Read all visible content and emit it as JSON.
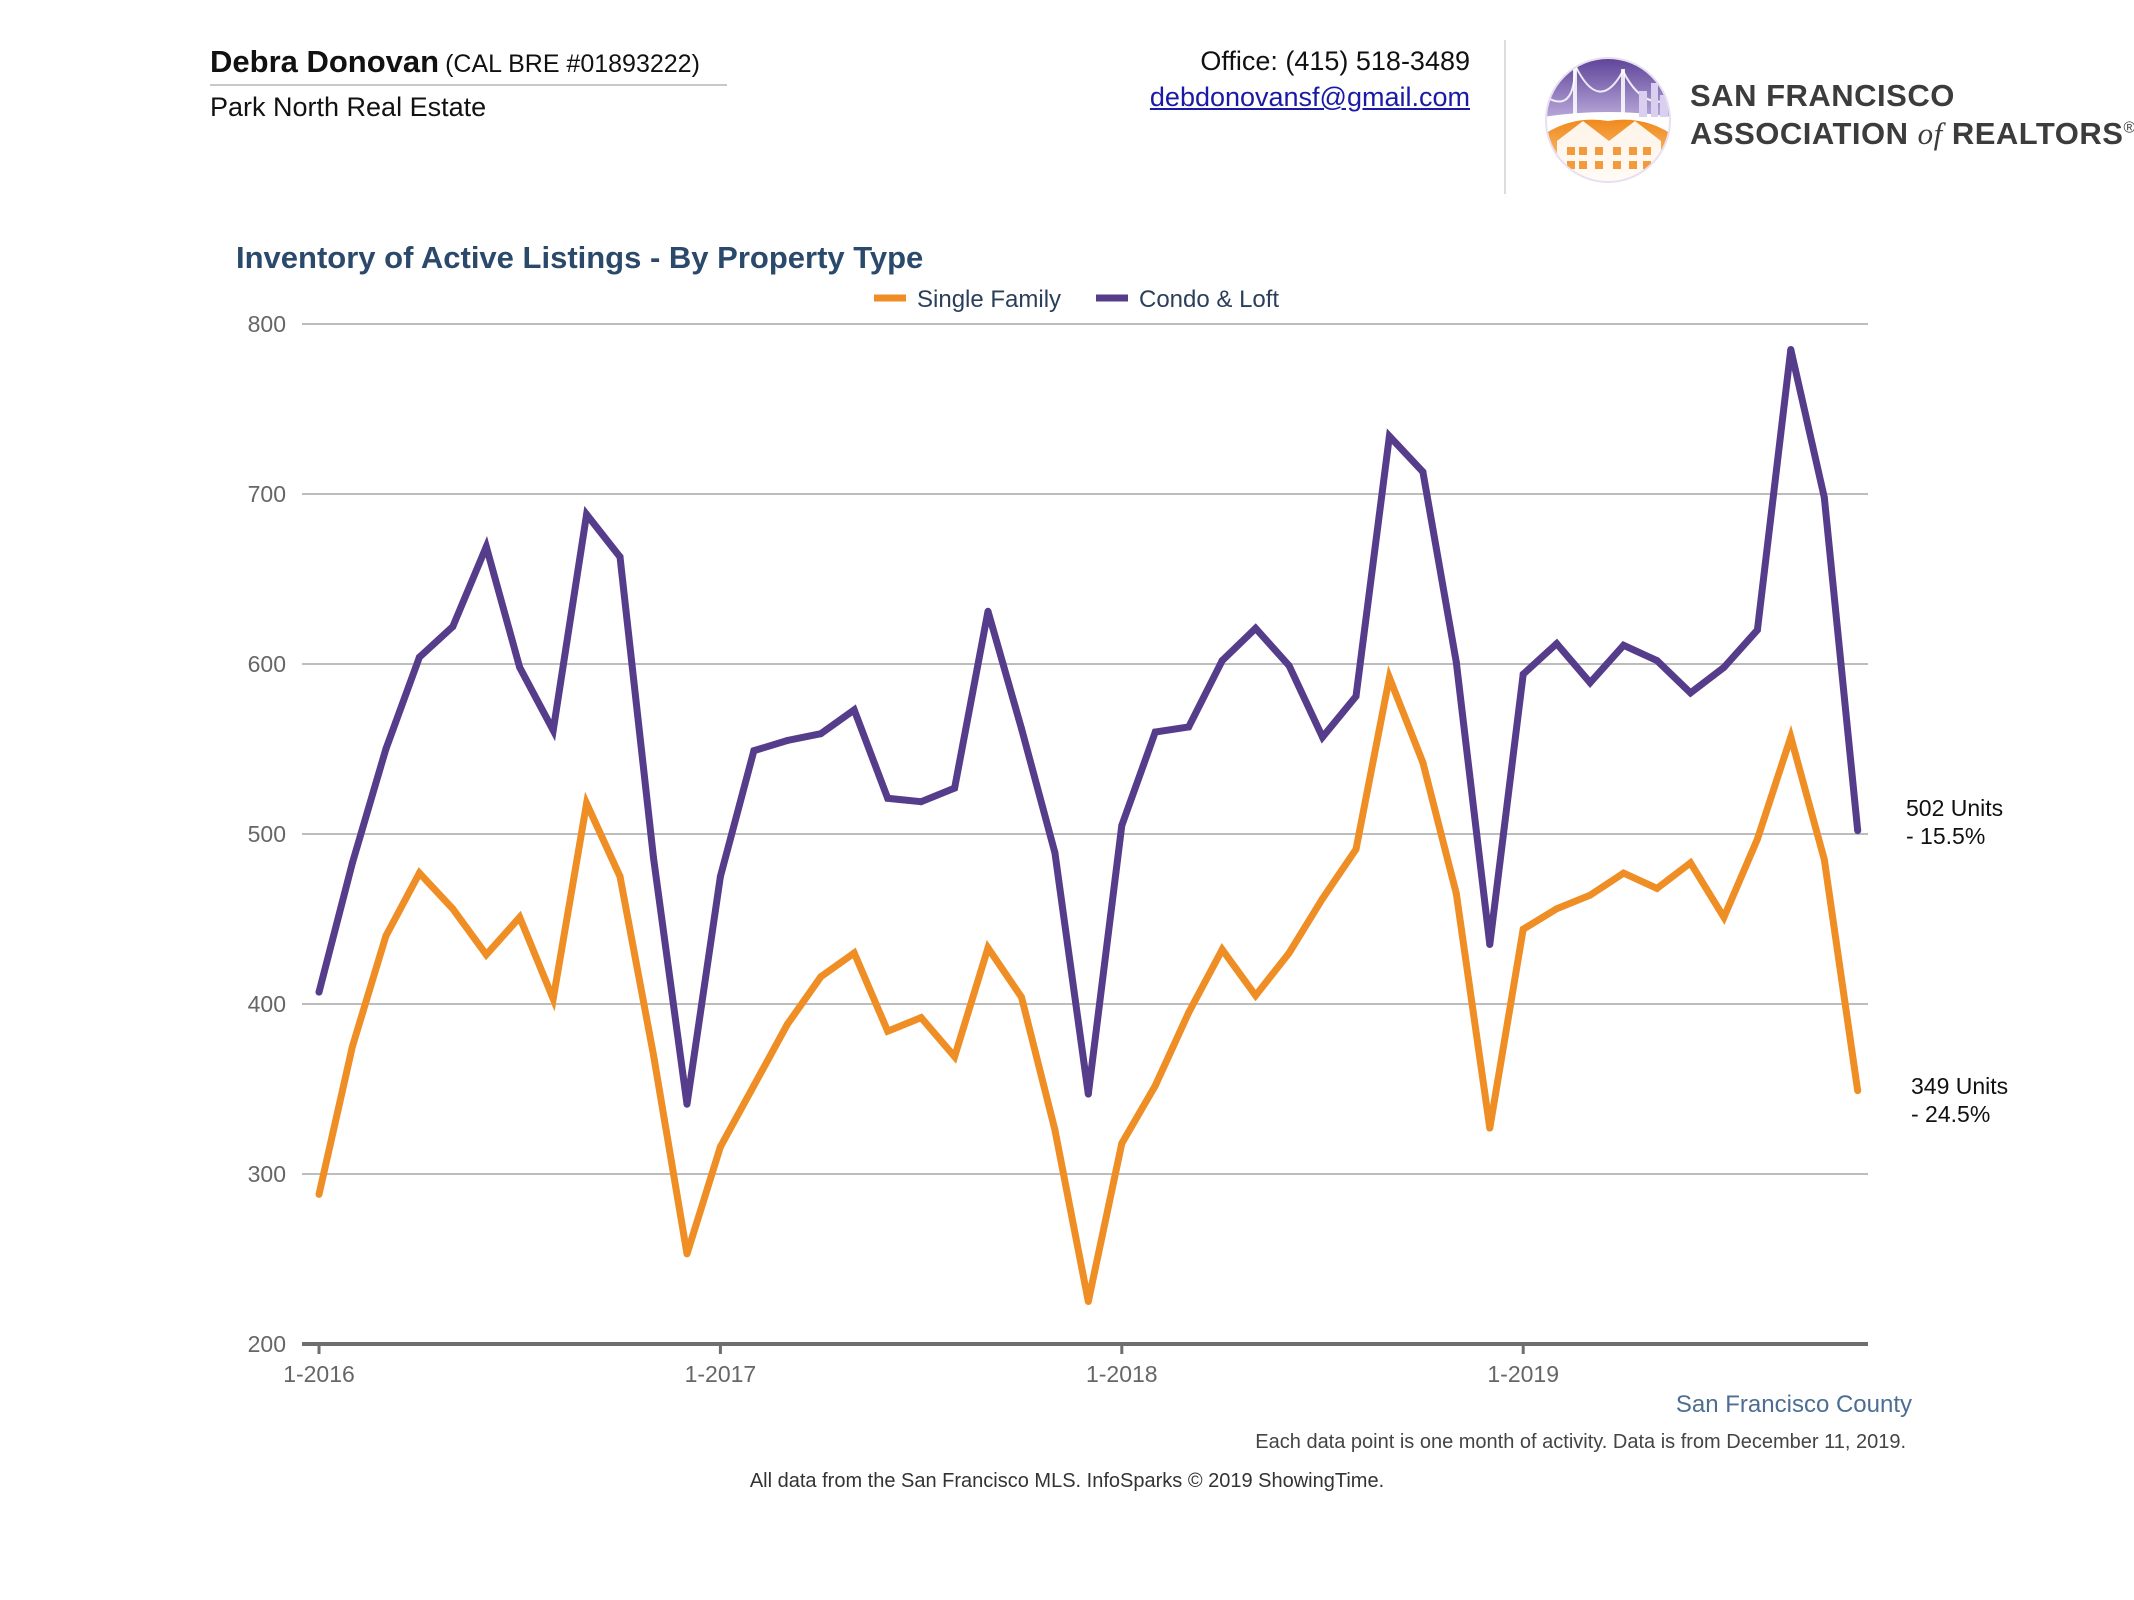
{
  "header": {
    "agent_name": "Debra Donovan",
    "agent_license": "(CAL BRE #01893222)",
    "brokerage": "Park North Real Estate",
    "office_phone": "Office: (415) 518-3489",
    "email": "debdonovansf@gmail.com",
    "logo_line1": "SAN FRANCISCO",
    "logo_line2_a": "ASSOCIATION ",
    "logo_line2_of": "of",
    "logo_line2_b": " REALTORS",
    "logo_line2_reg": "®"
  },
  "chart_data": {
    "type": "line",
    "title": "Inventory of Active Listings - By Property Type",
    "xlabel": "",
    "ylabel": "",
    "ylim": [
      200,
      800
    ],
    "yticks": [
      200,
      300,
      400,
      500,
      600,
      700,
      800
    ],
    "xtick_labels": [
      "1-2016",
      "1-2017",
      "1-2018",
      "1-2019"
    ],
    "grid": true,
    "legend_position": "top-center",
    "x": [
      "1-2016",
      "2-2016",
      "3-2016",
      "4-2016",
      "5-2016",
      "6-2016",
      "7-2016",
      "8-2016",
      "9-2016",
      "10-2016",
      "11-2016",
      "12-2016",
      "1-2017",
      "2-2017",
      "3-2017",
      "4-2017",
      "5-2017",
      "6-2017",
      "7-2017",
      "8-2017",
      "9-2017",
      "10-2017",
      "11-2017",
      "12-2017",
      "1-2018",
      "2-2018",
      "3-2018",
      "4-2018",
      "5-2018",
      "6-2018",
      "7-2018",
      "8-2018",
      "9-2018",
      "10-2018",
      "11-2018",
      "12-2018",
      "1-2019",
      "2-2019",
      "3-2019",
      "4-2019",
      "5-2019",
      "6-2019",
      "7-2019",
      "8-2019",
      "9-2019",
      "10-2019",
      "11-2019"
    ],
    "series": [
      {
        "name": "Single Family",
        "color": "#ef8e25",
        "values": [
          288,
          375,
          440,
          477,
          456,
          429,
          451,
          403,
          518,
          475,
          370,
          253,
          316,
          352,
          388,
          416,
          430,
          384,
          392,
          369,
          433,
          404,
          326,
          225,
          318,
          352,
          395,
          432,
          405,
          430,
          462,
          491,
          592,
          542,
          465,
          327,
          444,
          456,
          464,
          477,
          468,
          483,
          451,
          497,
          557,
          485,
          349
        ]
      },
      {
        "name": "Condo & Loft",
        "color": "#563d8b",
        "values": [
          407,
          483,
          550,
          604,
          622,
          669,
          598,
          561,
          688,
          663,
          486,
          341,
          475,
          549,
          555,
          559,
          573,
          521,
          519,
          527,
          631,
          562,
          489,
          347,
          505,
          560,
          563,
          602,
          621,
          599,
          557,
          581,
          734,
          713,
          601,
          435,
          594,
          612,
          589,
          611,
          602,
          583,
          598,
          620,
          785,
          698,
          502
        ]
      }
    ],
    "end_labels": [
      {
        "line1": "502 Units",
        "line2": "- 15.5%"
      },
      {
        "line1": "349 Units",
        "line2": "- 24.5%"
      }
    ],
    "region_label": "San Francisco County",
    "note": "Each data point is one month of activity. Data is from December 11, 2019.",
    "source": "All data from the San Francisco MLS. InfoSparks © 2019 ShowingTime."
  }
}
